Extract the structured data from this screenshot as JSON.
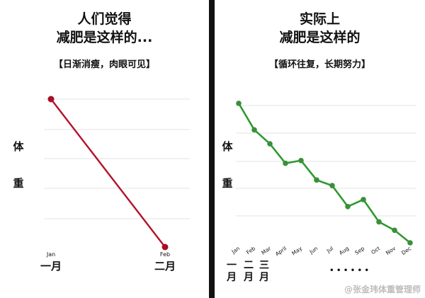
{
  "colors": {
    "grid": "#e3e3e3",
    "left_line": "#b3122a",
    "left_point": "#a80f24",
    "right_line": "#2f9a2f",
    "right_point": "#3a8f3a",
    "divider": "#111111",
    "text": "#111111"
  },
  "left": {
    "title_line1": "人们觉得",
    "title_line2": "减肥是这样的...",
    "subtitle": "【日渐消瘦，肉眼可见】",
    "ylabel_1": "体",
    "ylabel_2": "重"
  },
  "right": {
    "title_line1": "实际上",
    "title_line2": "减肥是这样的",
    "subtitle": "【循环往复，长期努力】",
    "ylabel_1": "体",
    "ylabel_2": "重",
    "cn_months": [
      "一",
      "二",
      "三"
    ],
    "cn_month_suffix": "月",
    "ellipsis": "• • • • • •"
  },
  "watermark": "@张金玮体重管理师",
  "chart_data": [
    {
      "type": "line",
      "title": "人们觉得 减肥是这样的...",
      "subtitle": "【日渐消瘦，肉眼可见】",
      "ylabel": "体重",
      "x": [
        "Jan",
        "Feb"
      ],
      "x_cn": [
        "一月",
        "二月"
      ],
      "series": [
        {
          "values": [
            100,
            0
          ]
        }
      ],
      "ylim": [
        0,
        100
      ],
      "grid": true
    },
    {
      "type": "line",
      "title": "实际上 减肥是这样的",
      "subtitle": "【循环往复，长期努力】",
      "ylabel": "体重",
      "x": [
        "Jan",
        "Feb",
        "Mar",
        "April",
        "May",
        "Jun",
        "Jul",
        "Aug",
        "Sep",
        "Oct",
        "Nov",
        "Dec"
      ],
      "series": [
        {
          "values": [
            100,
            81,
            71,
            57,
            59,
            45,
            41,
            26,
            31,
            15,
            9,
            0
          ]
        }
      ],
      "ylim": [
        0,
        100
      ],
      "grid": true
    }
  ]
}
